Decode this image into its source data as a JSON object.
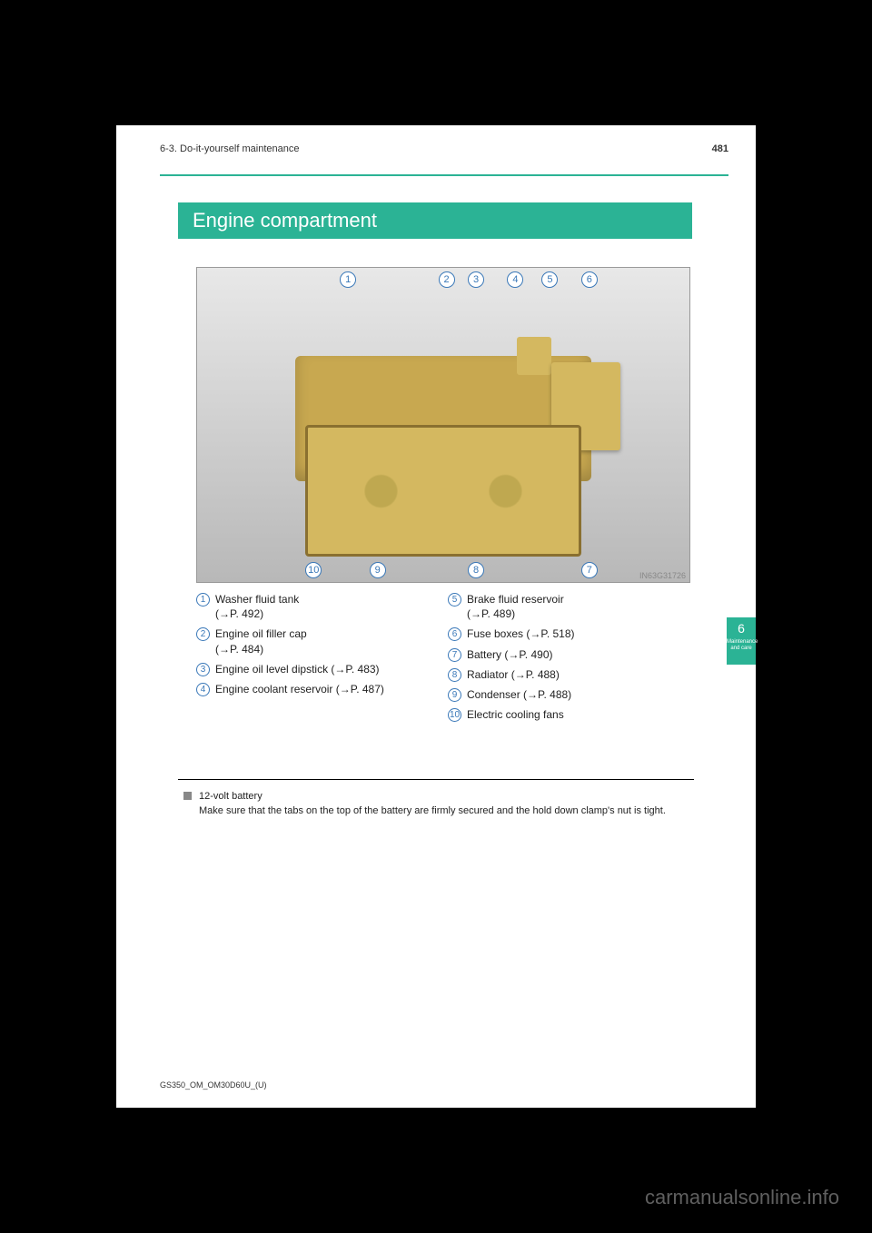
{
  "header": {
    "page_number": "481",
    "section": "6-3. Do-it-yourself maintenance"
  },
  "title": "Engine compartment",
  "diagram": {
    "top_callouts": [
      {
        "n": "1",
        "left_pct": 29
      },
      {
        "n": "2",
        "left_pct": 49
      },
      {
        "n": "3",
        "left_pct": 55
      },
      {
        "n": "4",
        "left_pct": 63
      },
      {
        "n": "5",
        "left_pct": 70
      },
      {
        "n": "6",
        "left_pct": 78
      }
    ],
    "bottom_callouts": [
      {
        "n": "10",
        "left_pct": 22
      },
      {
        "n": "9",
        "left_pct": 35
      },
      {
        "n": "8",
        "left_pct": 55
      },
      {
        "n": "7",
        "left_pct": 78
      }
    ],
    "img_code": "IN63G31726"
  },
  "legend": {
    "left": [
      {
        "n": "1",
        "text": "Washer fluid tank",
        "sub": "(→P. 492)"
      },
      {
        "n": "2",
        "text": "Engine oil filler cap",
        "sub": "(→P. 484)"
      },
      {
        "n": "3",
        "text": "Engine oil level dipstick (→P. 483)"
      },
      {
        "n": "4",
        "text": "Engine coolant reservoir (→P. 487)"
      }
    ],
    "right": [
      {
        "n": "5",
        "text": "Brake fluid reservoir",
        "sub": "(→P. 489)"
      },
      {
        "n": "6",
        "text": "Fuse boxes (→P. 518)"
      },
      {
        "n": "7",
        "text": "Battery (→P. 490)"
      },
      {
        "n": "8",
        "text": "Radiator (→P. 488)"
      },
      {
        "n": "9",
        "text": "Condenser (→P. 488)"
      },
      {
        "n": "10",
        "text": "Electric cooling fans"
      }
    ]
  },
  "note": {
    "heading": "12-volt battery",
    "body": "Make sure that the tabs on the top of the battery are firmly secured and the hold down clamp's nut is tight."
  },
  "tab": {
    "num": "6",
    "label": "Maintenance and care"
  },
  "footer_code": "GS350_OM_OM30D60U_(U)",
  "site_watermark": "carmanualsonline.info",
  "colors": {
    "accent": "#2bb395",
    "callout_ring": "#3a78b8",
    "engine_part": "#d4b860"
  }
}
